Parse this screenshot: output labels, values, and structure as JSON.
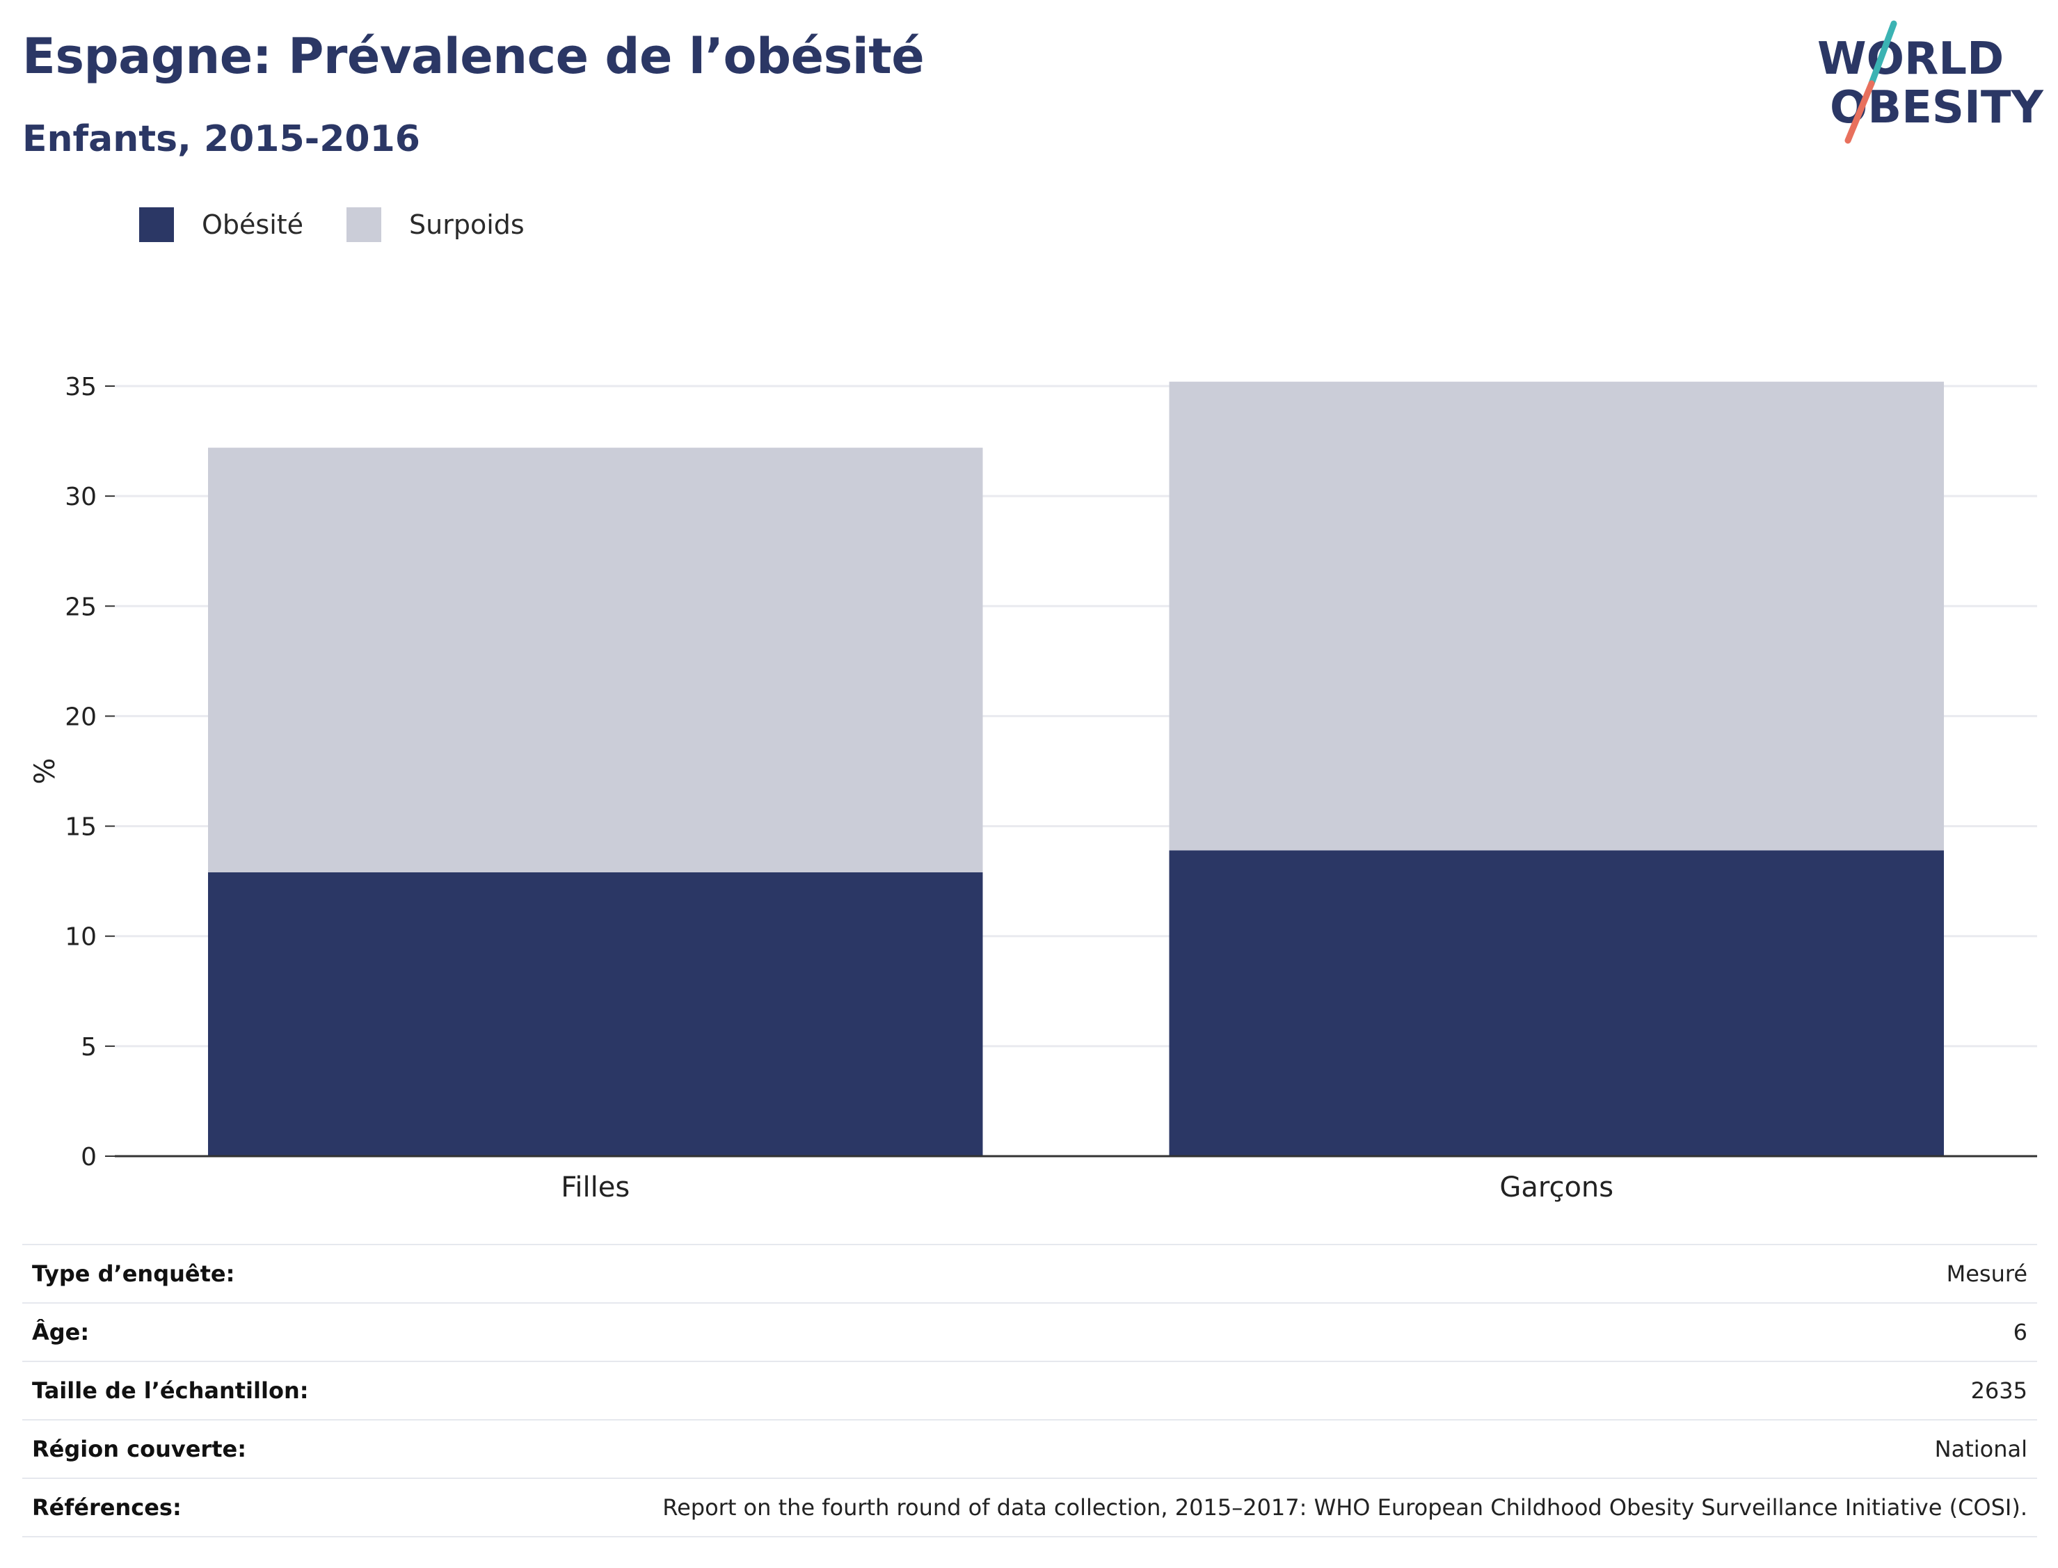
{
  "title": "Espagne: Prévalence de l’obésité",
  "subtitle": "Enfants, 2015-2016",
  "logo": {
    "line1": "WORLD",
    "line2": "OBESITY"
  },
  "colors": {
    "obesity": "#2b3765",
    "overweight": "#cbcdd8",
    "title": "#2b3765",
    "gridline": "#e9eaef",
    "logo_teal": "#3bb3b3",
    "logo_coral": "#e8705d"
  },
  "chart_data": {
    "type": "bar",
    "stacked": true,
    "categories": [
      "Filles",
      "Garçons"
    ],
    "series": [
      {
        "name": "Obésité",
        "values": [
          12.9,
          13.9
        ]
      },
      {
        "name": "Surpoids",
        "values": [
          19.3,
          21.3
        ]
      }
    ],
    "ylabel": "%",
    "xlabel": "",
    "ylim": [
      0,
      35
    ],
    "yticks": [
      0,
      5,
      10,
      15,
      20,
      25,
      30,
      35
    ],
    "grid": true,
    "legend_position": "top-left"
  },
  "info": [
    {
      "label": "Type d’enquête:",
      "value": "Mesuré"
    },
    {
      "label": "Âge:",
      "value": "6"
    },
    {
      "label": "Taille de l’échantillon:",
      "value": "2635"
    },
    {
      "label": "Région couverte:",
      "value": "National"
    },
    {
      "label": "Références:",
      "value": "Report on the fourth round of data collection, 2015–2017: WHO European Childhood Obesity Surveillance Initiative (COSI)."
    }
  ]
}
